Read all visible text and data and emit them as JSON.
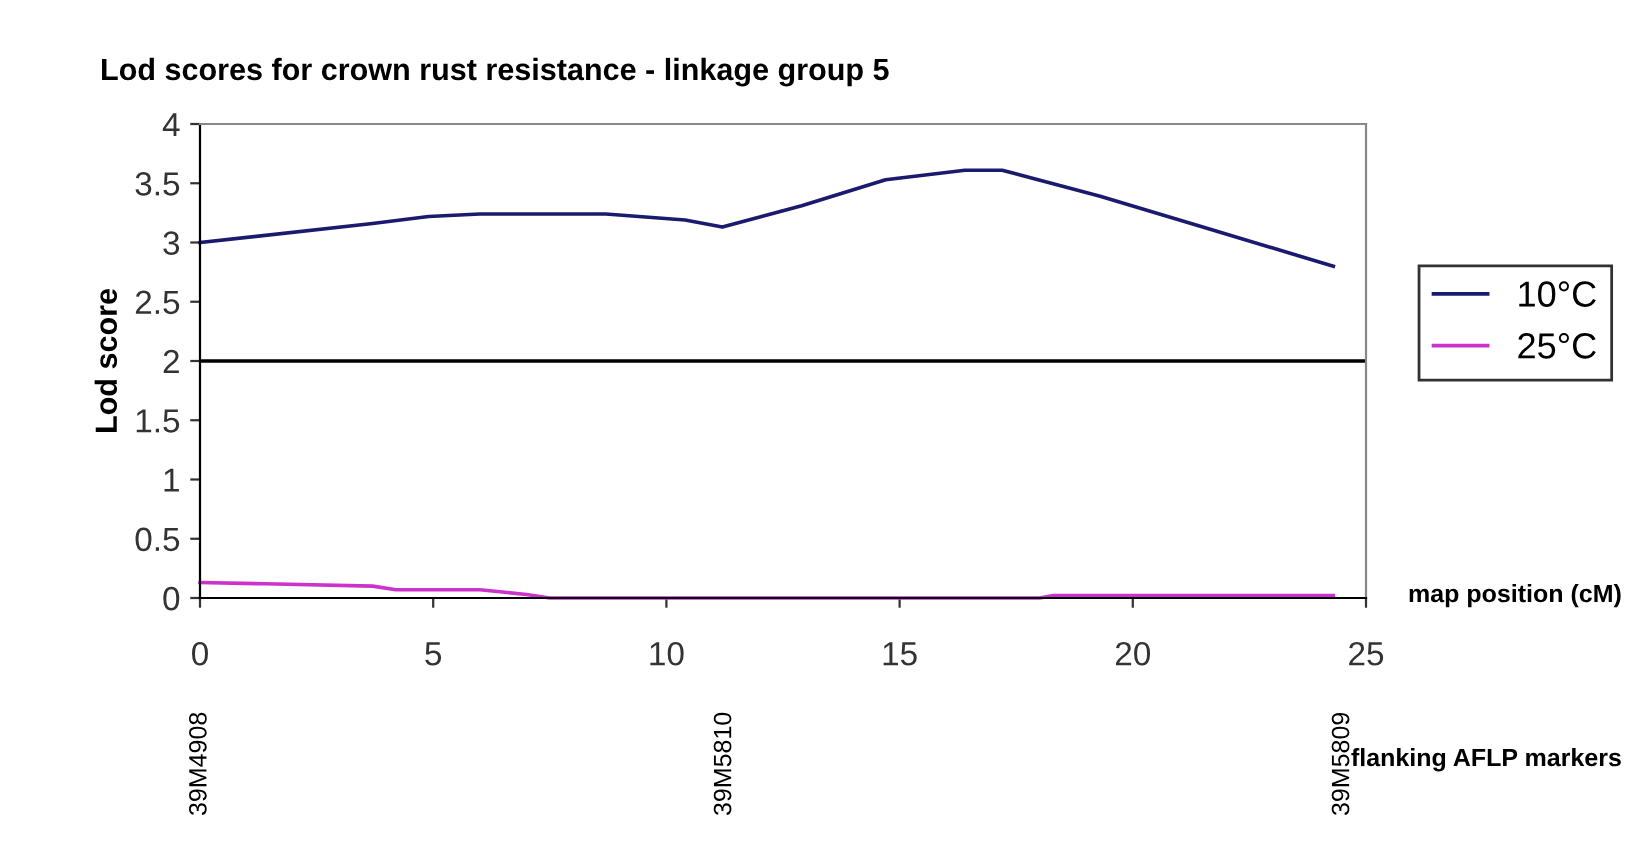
{
  "chart_data": {
    "type": "line",
    "title": "Lod scores for crown rust resistance - linkage group 5",
    "ylabel": "Lod score",
    "xlabel": "map position (cM)",
    "xlim": [
      0,
      25
    ],
    "xticks": [
      0,
      5,
      10,
      15,
      20,
      25
    ],
    "ylim": [
      0,
      4
    ],
    "yticks": [
      0,
      0.5,
      1,
      1.5,
      2,
      2.5,
      3,
      3.5,
      4
    ],
    "grid": false,
    "legend": "right",
    "line_style": "solid",
    "marker": "none",
    "ref_lines": [
      {
        "axis": "y",
        "value": 2,
        "color": "#000000"
      }
    ],
    "series": [
      {
        "name": "10°C",
        "color": "#1a1a6e",
        "x": [
          0,
          3.7,
          4.9,
          6.0,
          8.7,
          10.4,
          11.2,
          12.9,
          14.7,
          16.4,
          17.2,
          19.3,
          21.5,
          24.3
        ],
        "values": [
          3.0,
          3.16,
          3.22,
          3.24,
          3.24,
          3.19,
          3.13,
          3.31,
          3.53,
          3.61,
          3.61,
          3.39,
          3.13,
          2.8
        ]
      },
      {
        "name": "25°C",
        "color": "#cc33cc",
        "x": [
          0,
          1.4,
          3.7,
          4.2,
          6.0,
          7.0,
          7.5,
          18.0,
          18.3,
          24.3
        ],
        "values": [
          0.13,
          0.12,
          0.1,
          0.07,
          0.07,
          0.03,
          0,
          0,
          0.02,
          0.02
        ]
      }
    ],
    "annotations": [
      "39M4908",
      "39M5810",
      "39M5809",
      "flanking AFLP markers"
    ]
  }
}
